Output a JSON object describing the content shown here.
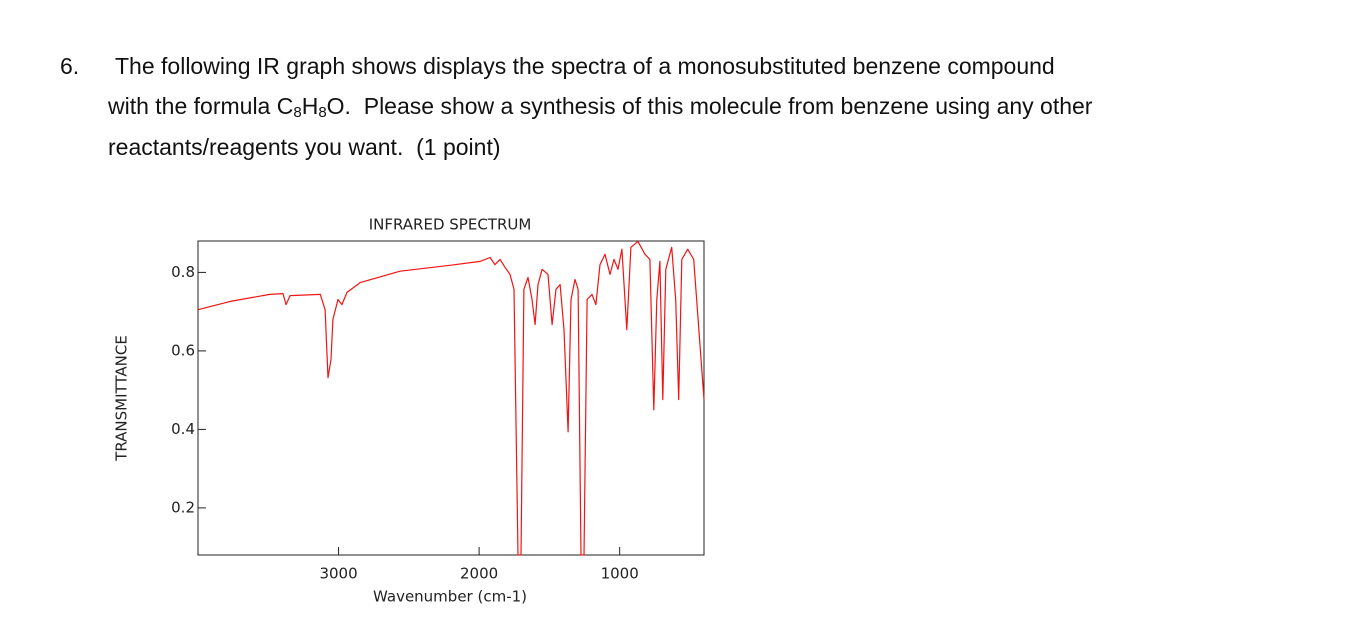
{
  "question": {
    "number": "6.",
    "lines": [
      [
        {
          "text": "The following IR graph shows displays the spectra of a monosubstituted benzene compound"
        }
      ],
      [
        {
          "text": "with the formula C"
        },
        {
          "text": "8",
          "sub": true
        },
        {
          "text": "H"
        },
        {
          "text": "8",
          "sub": true
        },
        {
          "text": "O.  Please show a synthesis of this molecule from benzene using any other"
        }
      ],
      [
        {
          "text": "reactants/reagents you want.  (1 point)"
        }
      ]
    ]
  },
  "chart_data": {
    "type": "line",
    "title": "INFRARED SPECTRUM",
    "x_label": "Wavenumber (cm-1)",
    "y_label": "TRANSMITTANCE",
    "xlim": [
      4000,
      400
    ],
    "ylim": [
      0.08,
      0.88
    ],
    "xticks": [
      3000,
      2000,
      1000
    ],
    "yticks": [
      0.2,
      0.4,
      0.6,
      0.8
    ],
    "series": [
      {
        "name": "IR spectrum",
        "color": "#f01414",
        "x": [
          4000,
          3770,
          3490,
          3395,
          3374,
          3345,
          3130,
          3096,
          3075,
          3054,
          3040,
          3004,
          2976,
          2940,
          2847,
          2563,
          2207,
          1993,
          1922,
          1887,
          1851,
          1816,
          1780,
          1752,
          1723,
          1702,
          1681,
          1652,
          1624,
          1602,
          1581,
          1552,
          1510,
          1481,
          1453,
          1424,
          1396,
          1367,
          1346,
          1318,
          1296,
          1275,
          1254,
          1232,
          1197,
          1169,
          1140,
          1104,
          1069,
          1040,
          1012,
          984,
          949,
          920,
          870,
          820,
          785,
          757,
          736,
          714,
          693,
          672,
          630,
          601,
          580,
          558,
          516,
          473,
          400
        ],
        "values": [
          0.705,
          0.726,
          0.744,
          0.746,
          0.718,
          0.741,
          0.744,
          0.705,
          0.532,
          0.578,
          0.68,
          0.731,
          0.718,
          0.749,
          0.774,
          0.803,
          0.818,
          0.828,
          0.838,
          0.82,
          0.833,
          0.813,
          0.795,
          0.757,
          0.08,
          0.08,
          0.757,
          0.787,
          0.731,
          0.667,
          0.769,
          0.808,
          0.795,
          0.667,
          0.757,
          0.769,
          0.654,
          0.394,
          0.731,
          0.782,
          0.757,
          0.08,
          0.08,
          0.731,
          0.744,
          0.718,
          0.82,
          0.846,
          0.795,
          0.833,
          0.808,
          0.859,
          0.654,
          0.864,
          0.879,
          0.846,
          0.833,
          0.45,
          0.731,
          0.828,
          0.476,
          0.808,
          0.864,
          0.731,
          0.476,
          0.833,
          0.859,
          0.833,
          0.476
        ]
      }
    ]
  }
}
